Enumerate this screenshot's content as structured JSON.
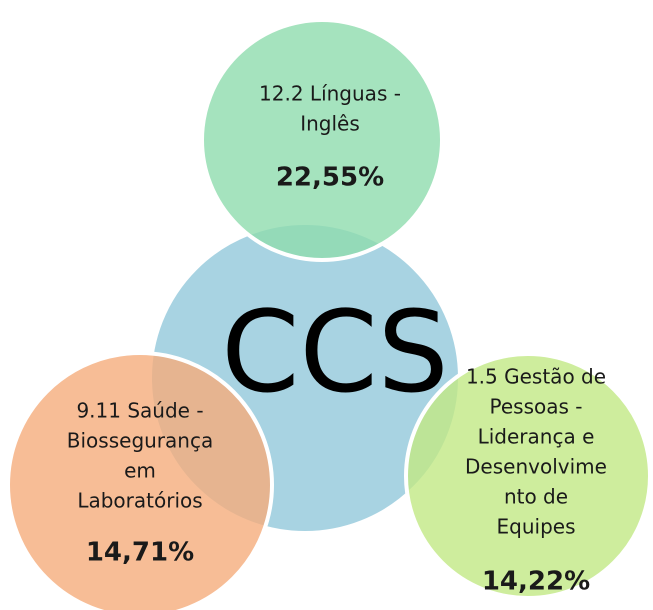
{
  "center": {
    "label": "CCS"
  },
  "nodes": [
    {
      "lines": [
        "12.2 Línguas -",
        "Inglês"
      ],
      "percent": "22,55%"
    },
    {
      "lines": [
        "9.11 Saúde -",
        "Biossegurança",
        "em",
        "Laboratórios"
      ],
      "percent": "14,71%"
    },
    {
      "lines": [
        "1.5 Gestão de",
        "Pessoas -",
        "Liderança e",
        "Desenvolvime",
        "nto de",
        "Equipes"
      ],
      "percent": "14,22%"
    }
  ]
}
